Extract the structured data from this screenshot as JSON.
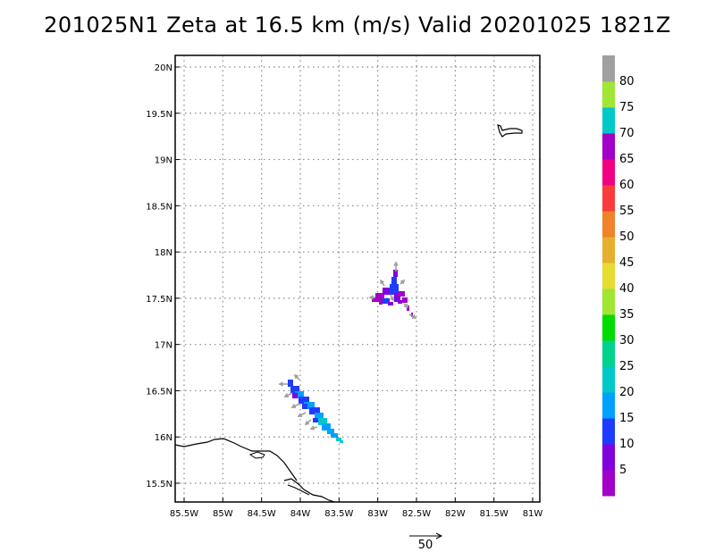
{
  "title": "201025N1 Zeta at 16.5 km (m/s) Valid 20201025 1821Z",
  "map": {
    "lon_range": [
      -85.5,
      -81
    ],
    "lat_range": [
      15.3,
      20.1
    ],
    "lon_ticks": [
      {
        "value": -85.5,
        "label": "85.5W"
      },
      {
        "value": -85,
        "label": "85W"
      },
      {
        "value": -84.5,
        "label": "84.5W"
      },
      {
        "value": -84,
        "label": "84W"
      },
      {
        "value": -83.5,
        "label": "83.5W"
      },
      {
        "value": -83,
        "label": "83W"
      },
      {
        "value": -82.5,
        "label": "82.5W"
      },
      {
        "value": -82,
        "label": "82W"
      },
      {
        "value": -81.5,
        "label": "81.5W"
      },
      {
        "value": -81,
        "label": "81W"
      }
    ],
    "lat_ticks": [
      {
        "value": 15.5,
        "label": "15.5N"
      },
      {
        "value": 16,
        "label": "16N"
      },
      {
        "value": 16.5,
        "label": "16.5N"
      },
      {
        "value": 17,
        "label": "17N"
      },
      {
        "value": 17.5,
        "label": "17.5N"
      },
      {
        "value": 18,
        "label": "18N"
      },
      {
        "value": 18.5,
        "label": "18.5N"
      },
      {
        "value": 19,
        "label": "19N"
      },
      {
        "value": 19.5,
        "label": "19.5N"
      },
      {
        "value": 20,
        "label": "20N"
      }
    ],
    "grid": true
  },
  "colorbar": {
    "labels": [
      "5",
      "10",
      "15",
      "20",
      "25",
      "30",
      "35",
      "40",
      "45",
      "50",
      "55",
      "60",
      "65",
      "70",
      "75",
      "80"
    ],
    "colors": [
      "#a000c8",
      "#8200dc",
      "#1e3cff",
      "#00a0ff",
      "#00c8c8",
      "#00d28c",
      "#00dc00",
      "#a0e632",
      "#e6dc32",
      "#e6af2d",
      "#f08228",
      "#fa3c3c",
      "#f00082",
      "#a000c8",
      "#00c8c8",
      "#a0e632",
      "#a0a0a0"
    ]
  },
  "vector_key": {
    "label": "50"
  },
  "chart_data": {
    "type": "heatmap",
    "title": "201025N1 Zeta at 16.5 km (m/s) Valid 20201025 1821Z",
    "x_range_lon": [
      -85.5,
      -81
    ],
    "y_range_lat": [
      15.3,
      20.1
    ],
    "units": "m/s",
    "features": [
      {
        "region": "northern cluster",
        "lon_range": [
          -83.05,
          -82.5
        ],
        "lat_range": [
          17.3,
          17.85
        ],
        "dominant_values": "5-10"
      },
      {
        "region": "southern band",
        "lon_range": [
          -84.15,
          -83.4
        ],
        "lat_range": [
          15.95,
          16.6
        ],
        "dominant_values": "10-20"
      }
    ]
  }
}
